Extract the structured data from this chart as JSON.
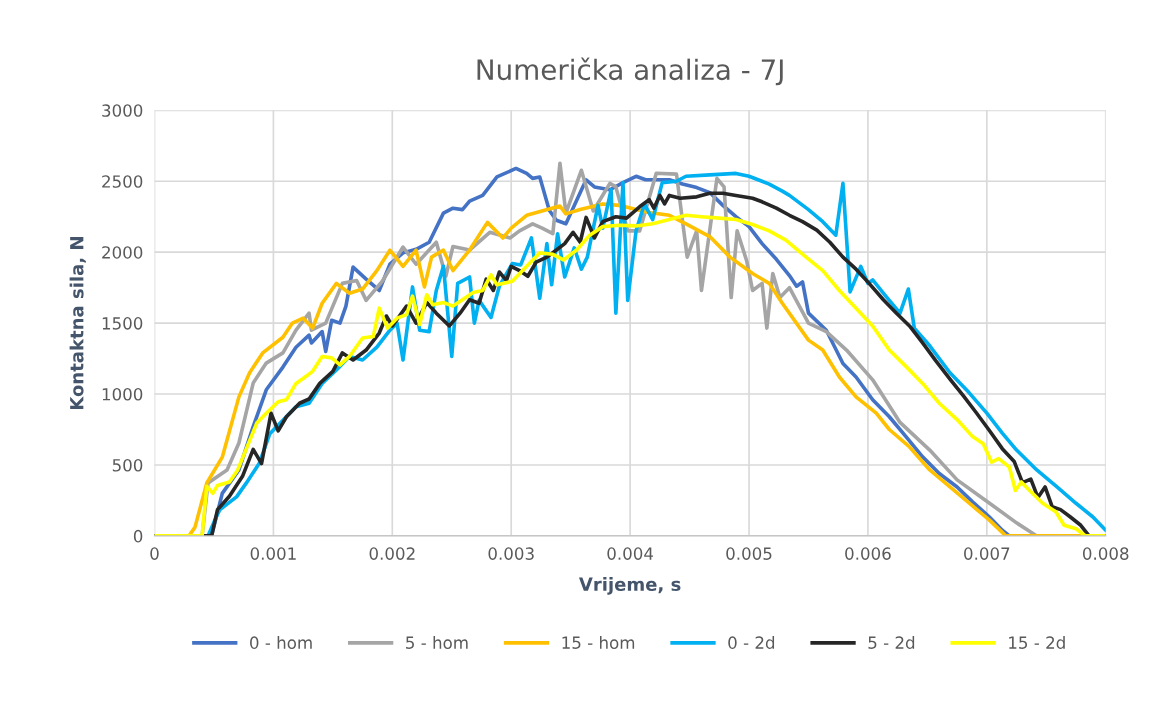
{
  "chart_data": {
    "type": "line",
    "title": "Numerička analiza - 7J",
    "xlabel": "Vrijeme, s",
    "ylabel": "Kontaktna sila, N",
    "xlim": [
      0,
      0.008
    ],
    "xticks": [
      0,
      0.001,
      0.002,
      0.003,
      0.004,
      0.005,
      0.006,
      0.007,
      0.008
    ],
    "ylim": [
      0,
      3000
    ],
    "yticks": [
      0,
      500,
      1000,
      1500,
      2000,
      2500,
      3000
    ],
    "grid": true,
    "legend": "bottom",
    "marker": "none",
    "line_style": "solid",
    "series": [
      {
        "name": "0 - hom",
        "color": "#4472c4",
        "x": [
          0,
          0.00048,
          0.00057,
          0.00071,
          0.00083,
          0.00094,
          0.00108,
          0.00119,
          0.0013,
          0.00132,
          0.00141,
          0.00144,
          0.00149,
          0.00156,
          0.00161,
          0.00167,
          0.00178,
          0.00189,
          0.00198,
          0.00209,
          0.0022,
          0.00231,
          0.00243,
          0.00251,
          0.00259,
          0.00265,
          0.00276,
          0.00288,
          0.00304,
          0.00313,
          0.00318,
          0.00324,
          0.00332,
          0.00338,
          0.00346,
          0.00363,
          0.0037,
          0.00383,
          0.00394,
          0.00405,
          0.00413,
          0.00433,
          0.00444,
          0.00456,
          0.00467,
          0.00478,
          0.00489,
          0.005,
          0.00511,
          0.00523,
          0.00534,
          0.0054,
          0.00545,
          0.0055,
          0.00565,
          0.00579,
          0.0059,
          0.00604,
          0.00618,
          0.00632,
          0.00646,
          0.0066,
          0.00675,
          0.00688,
          0.00702,
          0.00713,
          0.00719,
          0.008
        ],
        "values": [
          0,
          0,
          300,
          465,
          770,
          1030,
          1190,
          1330,
          1415,
          1360,
          1440,
          1300,
          1520,
          1500,
          1620,
          1895,
          1810,
          1730,
          1915,
          1995,
          2020,
          2070,
          2275,
          2310,
          2300,
          2360,
          2400,
          2530,
          2590,
          2555,
          2520,
          2530,
          2295,
          2225,
          2200,
          2510,
          2460,
          2440,
          2490,
          2535,
          2510,
          2510,
          2480,
          2455,
          2420,
          2330,
          2250,
          2180,
          2060,
          1950,
          1835,
          1760,
          1790,
          1570,
          1450,
          1215,
          1120,
          960,
          840,
          700,
          557,
          440,
          345,
          240,
          135,
          40,
          0,
          0
        ]
      },
      {
        "name": "5 - hom",
        "color": "#a5a5a5",
        "x": [
          0,
          0.0004,
          0.00045,
          0.00061,
          0.00071,
          0.00083,
          0.00094,
          0.00108,
          0.00119,
          0.0013,
          0.00132,
          0.00144,
          0.00158,
          0.0017,
          0.00178,
          0.00192,
          0.00209,
          0.0022,
          0.00237,
          0.00245,
          0.00251,
          0.00265,
          0.00282,
          0.00299,
          0.00307,
          0.00318,
          0.00326,
          0.00335,
          0.00341,
          0.00346,
          0.00359,
          0.00369,
          0.00383,
          0.00388,
          0.00398,
          0.00408,
          0.00422,
          0.00439,
          0.00448,
          0.00456,
          0.0046,
          0.00473,
          0.00479,
          0.00485,
          0.0049,
          0.00498,
          0.00503,
          0.00511,
          0.00515,
          0.0052,
          0.00526,
          0.00534,
          0.0055,
          0.00565,
          0.00582,
          0.00604,
          0.00627,
          0.00652,
          0.00675,
          0.00702,
          0.00725,
          0.00742,
          0.008
        ],
        "values": [
          0,
          0,
          373,
          465,
          655,
          1077,
          1218,
          1290,
          1450,
          1570,
          1450,
          1500,
          1780,
          1800,
          1660,
          1800,
          2036,
          1915,
          2070,
          1830,
          2040,
          2015,
          2140,
          2100,
          2150,
          2200,
          2170,
          2130,
          2627,
          2275,
          2577,
          2290,
          2485,
          2460,
          2150,
          2150,
          2556,
          2550,
          1965,
          2150,
          1730,
          2520,
          2460,
          1680,
          2150,
          1940,
          1730,
          1780,
          1465,
          1850,
          1680,
          1750,
          1500,
          1440,
          1310,
          1100,
          800,
          605,
          395,
          232,
          92,
          0,
          0
        ]
      },
      {
        "name": "15 - hom",
        "color": "#ffc000",
        "x": [
          0,
          0.00029,
          0.00034,
          0.00044,
          0.00057,
          0.00071,
          0.0008,
          0.00091,
          0.00108,
          0.00116,
          0.00125,
          0.00133,
          0.00141,
          0.00153,
          0.00164,
          0.00175,
          0.00187,
          0.00198,
          0.00209,
          0.0022,
          0.00227,
          0.00233,
          0.00243,
          0.00251,
          0.00265,
          0.0028,
          0.00293,
          0.003,
          0.00313,
          0.00341,
          0.00346,
          0.00358,
          0.00377,
          0.00391,
          0.00405,
          0.00416,
          0.00433,
          0.00447,
          0.00467,
          0.00484,
          0.00503,
          0.00517,
          0.00528,
          0.0055,
          0.00562,
          0.00576,
          0.0059,
          0.00607,
          0.00618,
          0.00635,
          0.00652,
          0.00669,
          0.00685,
          0.00702,
          0.00716,
          0.008
        ],
        "values": [
          0,
          0,
          60,
          373,
          555,
          980,
          1150,
          1290,
          1400,
          1500,
          1535,
          1465,
          1640,
          1780,
          1710,
          1740,
          1870,
          2014,
          1900,
          2014,
          1755,
          1965,
          2014,
          1870,
          2015,
          2210,
          2100,
          2170,
          2260,
          2325,
          2270,
          2300,
          2340,
          2330,
          2300,
          2280,
          2260,
          2200,
          2110,
          1965,
          1850,
          1780,
          1640,
          1380,
          1310,
          1120,
          980,
          865,
          750,
          627,
          465,
          345,
          232,
          113,
          0,
          0
        ]
      },
      {
        "name": "0 - 2d",
        "color": "#00b0f0",
        "x": [
          0,
          0.00045,
          0.00052,
          0.00055,
          0.00069,
          0.00077,
          0.00088,
          0.00097,
          0.00108,
          0.00119,
          0.0013,
          0.00141,
          0.00153,
          0.00164,
          0.00175,
          0.00187,
          0.00198,
          0.00204,
          0.00209,
          0.00217,
          0.00223,
          0.00231,
          0.00237,
          0.00243,
          0.0025,
          0.00255,
          0.00265,
          0.00269,
          0.00273,
          0.00283,
          0.0029,
          0.00301,
          0.00308,
          0.00317,
          0.00324,
          0.0033,
          0.00334,
          0.00339,
          0.00345,
          0.00353,
          0.00359,
          0.00364,
          0.00373,
          0.00377,
          0.00384,
          0.00388,
          0.00394,
          0.00398,
          0.00405,
          0.00412,
          0.00419,
          0.00427,
          0.00439,
          0.00447,
          0.00467,
          0.00489,
          0.005,
          0.00517,
          0.00528,
          0.00534,
          0.0055,
          0.00562,
          0.00573,
          0.00579,
          0.00585,
          0.00594,
          0.006,
          0.00604,
          0.00615,
          0.00627,
          0.00634,
          0.00639,
          0.00652,
          0.00669,
          0.00685,
          0.007,
          0.00713,
          0.00725,
          0.00742,
          0.00759,
          0.00775,
          0.00789,
          0.008
        ],
        "values": [
          0,
          0,
          135,
          185,
          275,
          370,
          510,
          720,
          815,
          910,
          935,
          1075,
          1170,
          1265,
          1240,
          1330,
          1450,
          1500,
          1240,
          1755,
          1450,
          1440,
          1730,
          1900,
          1265,
          1780,
          1825,
          1500,
          1660,
          1540,
          1760,
          1920,
          1910,
          2100,
          1675,
          2060,
          1770,
          2130,
          1825,
          2030,
          1880,
          1965,
          2330,
          2170,
          2440,
          1570,
          2490,
          1660,
          2150,
          2340,
          2230,
          2490,
          2500,
          2535,
          2545,
          2555,
          2535,
          2480,
          2430,
          2400,
          2300,
          2215,
          2120,
          2485,
          1720,
          1900,
          1780,
          1805,
          1690,
          1570,
          1740,
          1465,
          1340,
          1150,
          1010,
          865,
          725,
          605,
          465,
          345,
          230,
          135,
          40
        ]
      },
      {
        "name": "5 - 2d",
        "color": "#262626",
        "x": [
          0,
          0.00048,
          0.00053,
          0.00063,
          0.00074,
          0.00083,
          0.0009,
          0.00098,
          0.00104,
          0.00111,
          0.00122,
          0.0013,
          0.00139,
          0.0015,
          0.00158,
          0.00167,
          0.00178,
          0.00189,
          0.00195,
          0.002,
          0.00212,
          0.0022,
          0.00229,
          0.00237,
          0.00248,
          0.00257,
          0.00265,
          0.00273,
          0.00279,
          0.00285,
          0.0029,
          0.00296,
          0.003,
          0.00307,
          0.00314,
          0.00321,
          0.0033,
          0.00338,
          0.00345,
          0.00352,
          0.00358,
          0.00363,
          0.0037,
          0.00377,
          0.00388,
          0.00397,
          0.00408,
          0.00416,
          0.0042,
          0.00425,
          0.00429,
          0.00433,
          0.00442,
          0.00456,
          0.00467,
          0.00478,
          0.00489,
          0.00503,
          0.00511,
          0.00523,
          0.00534,
          0.00545,
          0.00557,
          0.00568,
          0.00579,
          0.0059,
          0.00601,
          0.00613,
          0.00624,
          0.00635,
          0.00646,
          0.00657,
          0.00669,
          0.0068,
          0.00691,
          0.00702,
          0.00713,
          0.00723,
          0.0073,
          0.00737,
          0.00743,
          0.00749,
          0.00755,
          0.00762,
          0.0077,
          0.00779,
          0.00786,
          0.008
        ],
        "values": [
          0,
          0,
          185,
          280,
          420,
          610,
          510,
          865,
          740,
          840,
          935,
          965,
          1075,
          1160,
          1290,
          1240,
          1310,
          1430,
          1550,
          1480,
          1620,
          1500,
          1645,
          1570,
          1480,
          1570,
          1665,
          1640,
          1810,
          1730,
          1860,
          1800,
          1900,
          1870,
          1830,
          1930,
          1965,
          2015,
          2060,
          2140,
          2070,
          2245,
          2100,
          2215,
          2250,
          2240,
          2320,
          2370,
          2310,
          2400,
          2340,
          2400,
          2380,
          2390,
          2415,
          2415,
          2400,
          2380,
          2355,
          2310,
          2260,
          2215,
          2155,
          2070,
          1965,
          1880,
          1780,
          1665,
          1570,
          1480,
          1360,
          1235,
          1105,
          990,
          870,
          745,
          615,
          525,
          375,
          400,
          270,
          345,
          205,
          185,
          135,
          75,
          0,
          0
        ]
      },
      {
        "name": "15 - 2d",
        "color": "#ffff00",
        "x": [
          0,
          0.0004,
          0.00044,
          0.00049,
          0.00053,
          0.00063,
          0.0007,
          0.00077,
          0.00086,
          0.00094,
          0.00104,
          0.00111,
          0.00119,
          0.00125,
          0.00133,
          0.00141,
          0.00149,
          0.00156,
          0.00164,
          0.00175,
          0.00184,
          0.00189,
          0.00196,
          0.00204,
          0.00212,
          0.00217,
          0.00223,
          0.00229,
          0.00234,
          0.00243,
          0.00251,
          0.00259,
          0.00268,
          0.00276,
          0.00283,
          0.00288,
          0.00301,
          0.00313,
          0.00324,
          0.00335,
          0.00344,
          0.00355,
          0.00366,
          0.00377,
          0.00391,
          0.00405,
          0.00419,
          0.00433,
          0.00447,
          0.0046,
          0.00475,
          0.00489,
          0.00503,
          0.00517,
          0.00531,
          0.00548,
          0.00562,
          0.00576,
          0.0059,
          0.00604,
          0.00618,
          0.00632,
          0.00646,
          0.0066,
          0.00675,
          0.00688,
          0.00697,
          0.00704,
          0.0071,
          0.00719,
          0.00724,
          0.00729,
          0.00736,
          0.00747,
          0.00758,
          0.00765,
          0.00775,
          0.00783,
          0.008
        ],
        "values": [
          0,
          0,
          350,
          300,
          355,
          380,
          465,
          610,
          795,
          865,
          945,
          960,
          1075,
          1110,
          1160,
          1265,
          1255,
          1205,
          1265,
          1395,
          1405,
          1605,
          1465,
          1535,
          1560,
          1690,
          1490,
          1700,
          1630,
          1645,
          1620,
          1665,
          1715,
          1730,
          1840,
          1770,
          1795,
          1900,
          1995,
          1985,
          1945,
          2015,
          2120,
          2180,
          2190,
          2185,
          2200,
          2230,
          2260,
          2250,
          2240,
          2230,
          2195,
          2150,
          2085,
          1965,
          1870,
          1730,
          1605,
          1480,
          1310,
          1195,
          1075,
          935,
          820,
          700,
          650,
          520,
          545,
          485,
          320,
          380,
          320,
          230,
          170,
          75,
          50,
          0,
          0
        ]
      }
    ]
  }
}
